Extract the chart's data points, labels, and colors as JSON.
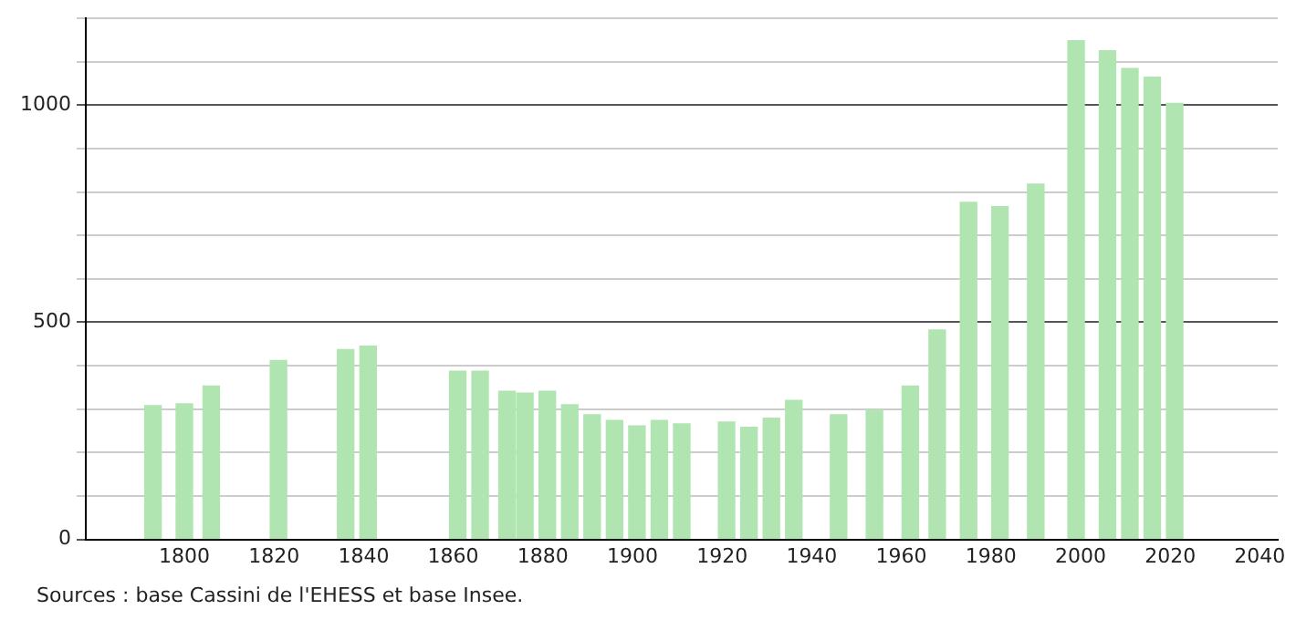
{
  "chart_data": {
    "type": "bar",
    "x": [
      1793,
      1800,
      1806,
      1821,
      1836,
      1841,
      1861,
      1866,
      1872,
      1876,
      1881,
      1886,
      1891,
      1896,
      1901,
      1906,
      1911,
      1921,
      1926,
      1931,
      1936,
      1946,
      1954,
      1962,
      1968,
      1975,
      1982,
      1990,
      1999,
      2006,
      2011,
      2016,
      2021
    ],
    "values": [
      308,
      312,
      353,
      412,
      437,
      445,
      387,
      387,
      341,
      337,
      341,
      310,
      287,
      274,
      261,
      274,
      266,
      270,
      258,
      279,
      320,
      287,
      298,
      353,
      482,
      776,
      766,
      818,
      1148,
      1125,
      1084,
      1064,
      1004
    ],
    "color": "#b0e4b0",
    "xlim": [
      1778,
      2044
    ],
    "xticks": [
      1800,
      1820,
      1840,
      1860,
      1880,
      1900,
      1920,
      1940,
      1960,
      1980,
      2000,
      2020,
      2040
    ],
    "ylim": [
      0,
      1200
    ],
    "yticks": [
      0,
      {
        "value": 100,
        "label": null
      },
      {
        "value": 200,
        "label": null
      },
      {
        "value": 300,
        "label": null
      },
      {
        "value": 400,
        "label": null
      },
      500,
      {
        "value": 600,
        "label": null
      },
      {
        "value": 700,
        "label": null
      },
      {
        "value": 800,
        "label": null
      },
      {
        "value": 900,
        "label": null
      },
      1000,
      {
        "value": 1100,
        "label": null
      },
      {
        "value": 1200,
        "label": null
      }
    ],
    "grid": "y",
    "annotations": [
      "Sources : base Cassini de l'EHESS et base Insee."
    ]
  }
}
